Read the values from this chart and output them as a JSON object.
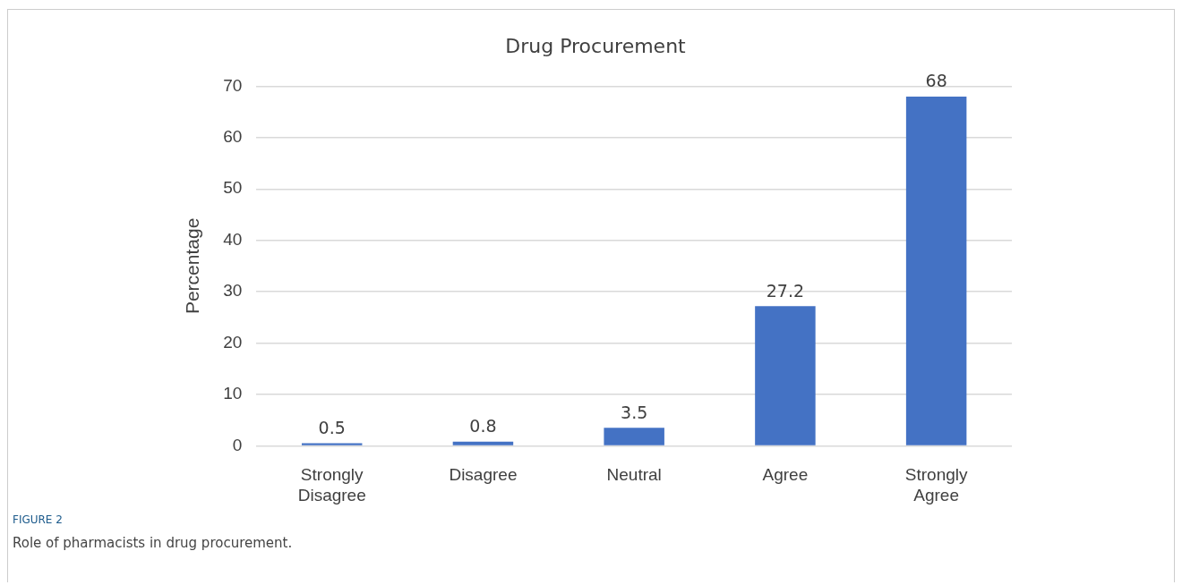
{
  "chart_data": {
    "type": "bar",
    "title": "Drug Procurement",
    "ylabel": "Percentage",
    "categories": [
      "Strongly Disagree",
      "Disagree",
      "Neutral",
      "Agree",
      "Strongly Agree"
    ],
    "values": [
      0.5,
      0.8,
      3.5,
      27.2,
      68
    ],
    "color": "#4472c4",
    "ylim": [
      0,
      70
    ],
    "yticks": [
      0,
      10,
      20,
      30,
      40,
      50,
      60,
      70
    ],
    "grid": "y",
    "legend": false,
    "data_labels": true,
    "annotations": [
      "FIGURE 2",
      "Role of pharmacists in drug procurement."
    ]
  }
}
